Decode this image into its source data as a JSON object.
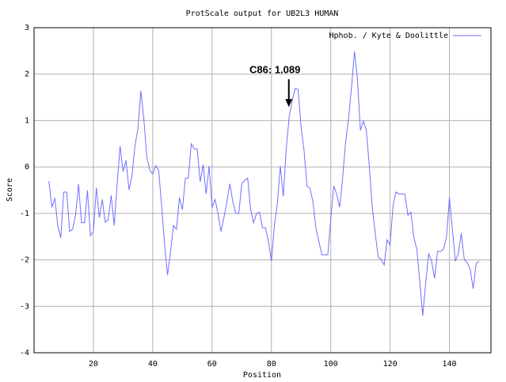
{
  "chart_data": {
    "type": "line",
    "title": "ProtScale output for UB2L3 HUMAN",
    "x_label": "Position",
    "y_label": "Score",
    "xlim": [
      0,
      154
    ],
    "ylim": [
      -4,
      3
    ],
    "xticks": [
      20,
      40,
      60,
      80,
      100,
      120,
      140
    ],
    "yticks": [
      -4,
      -3,
      -2,
      -1,
      0,
      1,
      2,
      3
    ],
    "grid": true,
    "legend": "upper right",
    "annotation": {
      "text": "C86: 1.089",
      "x": 86,
      "y": 1.089
    },
    "x": [
      5,
      6,
      7,
      8,
      9,
      10,
      11,
      12,
      13,
      14,
      15,
      16,
      17,
      18,
      19,
      20,
      21,
      22,
      23,
      24,
      25,
      26,
      27,
      28,
      29,
      30,
      31,
      32,
      33,
      34,
      35,
      36,
      37,
      38,
      39,
      40,
      41,
      42,
      43,
      44,
      45,
      46,
      47,
      48,
      49,
      50,
      51,
      52,
      53,
      54,
      55,
      56,
      57,
      58,
      59,
      60,
      61,
      62,
      63,
      64,
      65,
      66,
      67,
      68,
      69,
      70,
      71,
      72,
      73,
      74,
      75,
      76,
      77,
      78,
      79,
      80,
      81,
      82,
      83,
      84,
      85,
      86,
      87,
      88,
      89,
      90,
      91,
      92,
      93,
      94,
      95,
      96,
      97,
      98,
      99,
      100,
      101,
      102,
      103,
      104,
      105,
      106,
      107,
      108,
      109,
      110,
      111,
      112,
      113,
      114,
      115,
      116,
      117,
      118,
      119,
      120,
      121,
      122,
      123,
      124,
      125,
      126,
      127,
      128,
      129,
      130,
      131,
      132,
      133,
      134,
      135,
      136,
      137,
      138,
      139,
      140,
      141,
      142,
      143,
      144,
      145,
      146,
      147,
      148,
      149,
      150
    ],
    "series": [
      {
        "name": "Hphob. / Kyte & Doolittle",
        "color": "#6f6fff",
        "values": [
          -0.3,
          -0.87,
          -0.67,
          -1.26,
          -1.53,
          -0.54,
          -0.54,
          -1.39,
          -1.34,
          -1.03,
          -0.37,
          -1.2,
          -1.2,
          -0.5,
          -1.48,
          -1.39,
          -0.45,
          -1.09,
          -0.7,
          -1.19,
          -1.14,
          -0.61,
          -1.26,
          -0.37,
          0.45,
          -0.1,
          0.14,
          -0.49,
          -0.19,
          0.45,
          0.82,
          1.64,
          1.04,
          0.22,
          -0.07,
          -0.15,
          0.03,
          -0.07,
          -0.83,
          -1.68,
          -2.33,
          -1.82,
          -1.26,
          -1.34,
          -0.66,
          -0.92,
          -0.24,
          -0.24,
          0.5,
          0.39,
          0.39,
          -0.32,
          0.05,
          -0.58,
          0.02,
          -0.87,
          -0.7,
          -1.0,
          -1.39,
          -1.09,
          -0.75,
          -0.36,
          -0.75,
          -1.0,
          -1.0,
          -0.36,
          -0.29,
          -0.24,
          -0.92,
          -1.2,
          -1.0,
          -0.97,
          -1.31,
          -1.31,
          -1.6,
          -2.03,
          -1.26,
          -0.8,
          0.02,
          -0.63,
          0.39,
          1.089,
          1.42,
          1.69,
          1.67,
          0.87,
          0.36,
          -0.41,
          -0.46,
          -0.75,
          -1.31,
          -1.6,
          -1.89,
          -1.89,
          -1.89,
          -1.14,
          -0.41,
          -0.58,
          -0.87,
          -0.24,
          0.53,
          1.04,
          1.72,
          2.49,
          1.89,
          0.79,
          0.99,
          0.79,
          0.02,
          -0.87,
          -1.43,
          -1.94,
          -1.99,
          -2.11,
          -1.57,
          -1.68,
          -0.83,
          -0.54,
          -0.58,
          -0.58,
          -0.58,
          -1.04,
          -0.97,
          -1.51,
          -1.77,
          -2.45,
          -3.21,
          -2.5,
          -1.86,
          -2.03,
          -2.4,
          -1.82,
          -1.82,
          -1.77,
          -1.51,
          -0.66,
          -1.34,
          -2.03,
          -1.86,
          -1.43,
          -1.99,
          -2.06,
          -2.2,
          -2.62,
          -2.08,
          -2.03
        ]
      }
    ]
  }
}
